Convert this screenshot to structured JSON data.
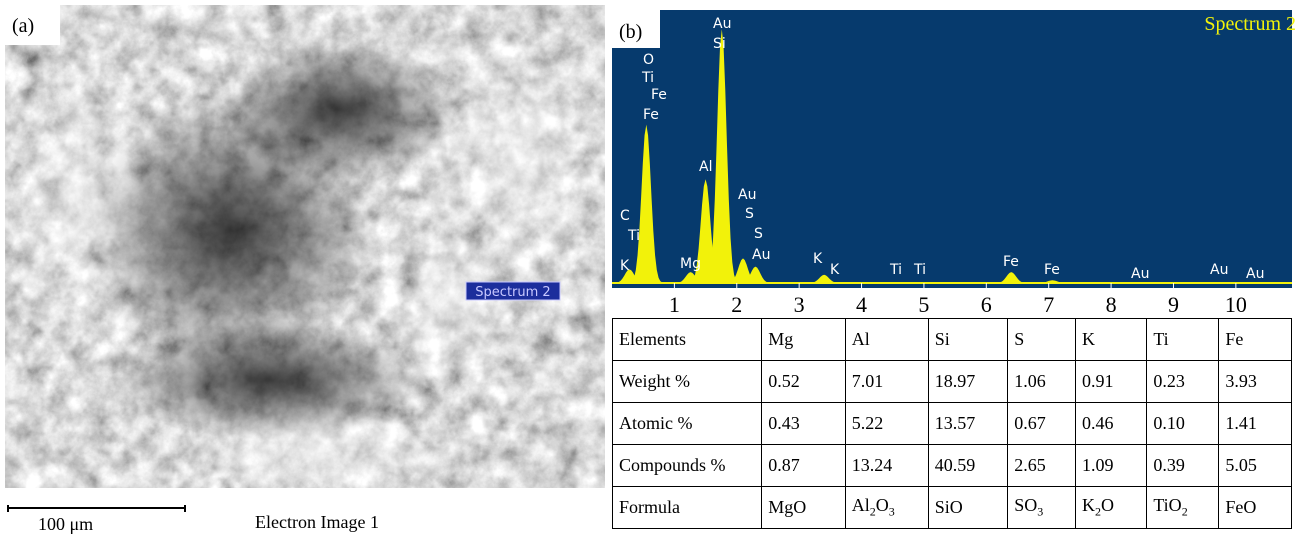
{
  "panel_a": {
    "label": "(a)",
    "marker": "Spectrum 2",
    "scale_bar": "100 μm",
    "caption": "Electron Image 1"
  },
  "spectrum": {
    "type": "area",
    "label": "(b)",
    "title": "Spectrum 2",
    "color": "#f2f20a",
    "background": "#063a6d",
    "xlim": [
      0,
      10.9
    ],
    "ylim": [
      0,
      100
    ],
    "xticks": [
      1,
      2,
      3,
      4,
      5,
      6,
      7,
      8,
      9,
      10
    ],
    "peaks": {
      "x": [
        0.28,
        0.55,
        1.26,
        1.5,
        1.76,
        2.1,
        2.3,
        3.4,
        6.4,
        7.06
      ],
      "values": [
        5,
        58,
        4,
        38,
        93,
        9,
        6,
        3,
        4,
        1
      ]
    },
    "peak_labels": [
      "Au",
      "Si",
      "O",
      "Ti",
      "Fe",
      "Fe",
      "Al",
      "Au",
      "S",
      "S",
      "Au",
      "C",
      "Ti",
      "K",
      "Mg",
      "K",
      "K",
      "Ti",
      "Ti",
      "Fe",
      "Fe",
      "Au",
      "Au",
      "Au"
    ]
  },
  "table": {
    "rows": [
      [
        "Elements",
        "Mg",
        "Al",
        "Si",
        "S",
        "K",
        "Ti",
        "Fe"
      ],
      [
        "Weight %",
        "0.52",
        "7.01",
        "18.97",
        "1.06",
        "0.91",
        "0.23",
        "3.93"
      ],
      [
        "Atomic %",
        "0.43",
        "5.22",
        "13.57",
        "0.67",
        "0.46",
        "0.10",
        "1.41"
      ],
      [
        "Compounds %",
        "0.87",
        "13.24",
        "40.59",
        "2.65",
        "1.09",
        "0.39",
        "5.05"
      ],
      [
        "Formula",
        "MgO",
        "Al2O3",
        "SiO",
        "SO3",
        "K2O",
        "TiO2",
        "FeO"
      ]
    ]
  }
}
